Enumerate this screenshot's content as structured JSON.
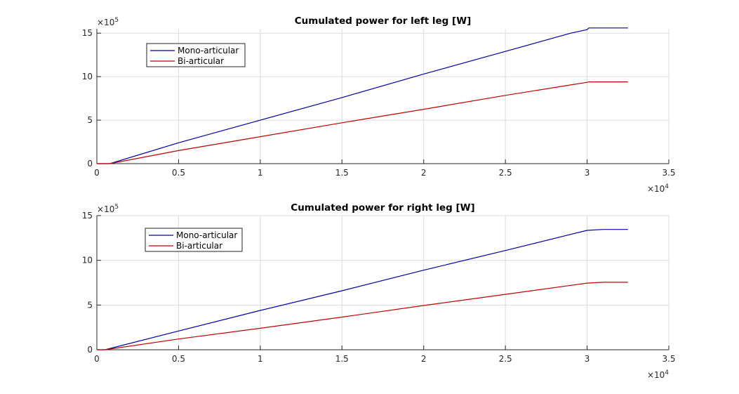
{
  "colors": {
    "mono": "#0000a8",
    "bi": "#c00000",
    "grid": "#dcdcdc",
    "axis": "#262626"
  },
  "chart_data": [
    {
      "type": "line",
      "title": "Cumulated power for left leg [W]",
      "xlabel": "",
      "ylabel": "",
      "xlim": [
        0,
        35000
      ],
      "ylim": [
        0,
        1550000
      ],
      "x_ticks": [
        0,
        5000,
        10000,
        15000,
        20000,
        25000,
        30000,
        35000
      ],
      "x_tick_labels": [
        "0",
        "0.5",
        "1",
        "1.5",
        "2",
        "2.5",
        "3",
        "3.5"
      ],
      "y_ticks": [
        0,
        500000,
        1000000,
        1500000
      ],
      "y_tick_labels": [
        "0",
        "5",
        "10",
        "15"
      ],
      "x_exponent": {
        "base": "×10",
        "power": "4"
      },
      "y_exponent": {
        "base": "×10",
        "power": "5"
      },
      "grid": true,
      "legend_position": "top-left",
      "series": [
        {
          "name": "Mono-articular",
          "x": [
            0,
            800,
            5000,
            10000,
            15000,
            20000,
            25000,
            29000,
            30000,
            30100,
            32500
          ],
          "y": [
            0,
            0,
            240000,
            500000,
            760000,
            1030000,
            1290000,
            1500000,
            1540000,
            1560000,
            1560000
          ]
        },
        {
          "name": "Bi-articular",
          "x": [
            0,
            800,
            5000,
            10000,
            15000,
            20000,
            25000,
            29000,
            30000,
            30100,
            32500
          ],
          "y": [
            0,
            0,
            150000,
            310000,
            470000,
            625000,
            785000,
            905000,
            935000,
            940000,
            940000
          ]
        }
      ]
    },
    {
      "type": "line",
      "title": "Cumulated power for right leg [W]",
      "xlabel": "",
      "ylabel": "",
      "xlim": [
        0,
        35000
      ],
      "ylim": [
        0,
        1500000
      ],
      "x_ticks": [
        0,
        5000,
        10000,
        15000,
        20000,
        25000,
        30000,
        35000
      ],
      "x_tick_labels": [
        "0",
        "0.5",
        "1",
        "1.5",
        "2",
        "2.5",
        "3",
        "3.5"
      ],
      "y_ticks": [
        0,
        500000,
        1000000,
        1500000
      ],
      "y_tick_labels": [
        "0",
        "5",
        "10",
        "15"
      ],
      "x_exponent": {
        "base": "×10",
        "power": "4"
      },
      "y_exponent": {
        "base": "×10",
        "power": "5"
      },
      "grid": true,
      "legend_position": "top-left",
      "series": [
        {
          "name": "Mono-articular",
          "x": [
            0,
            500,
            5000,
            10000,
            15000,
            20000,
            25000,
            29000,
            30000,
            31000,
            32500
          ],
          "y": [
            0,
            0,
            210000,
            440000,
            660000,
            890000,
            1110000,
            1290000,
            1335000,
            1345000,
            1345000
          ]
        },
        {
          "name": "Bi-articular",
          "x": [
            0,
            500,
            5000,
            10000,
            15000,
            20000,
            25000,
            29000,
            30000,
            31000,
            32500
          ],
          "y": [
            0,
            0,
            120000,
            240000,
            365000,
            495000,
            620000,
            720000,
            745000,
            755000,
            755000
          ]
        }
      ]
    }
  ]
}
